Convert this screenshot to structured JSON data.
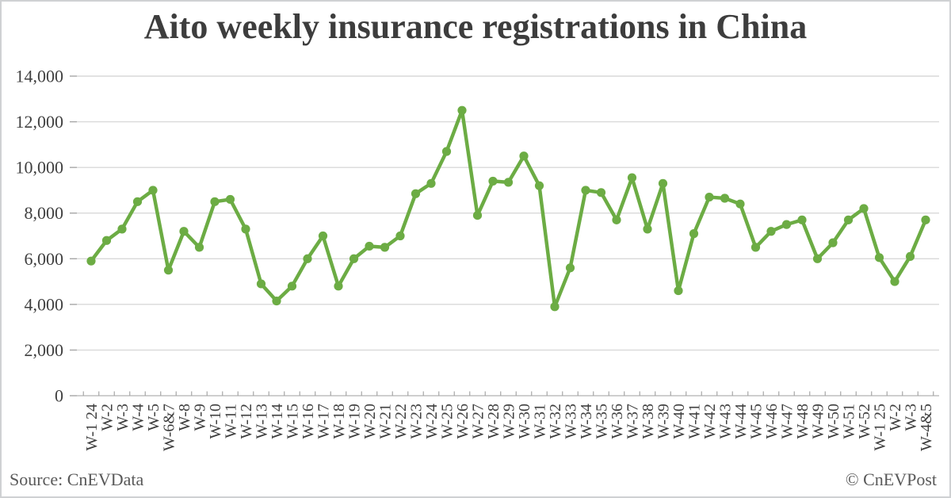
{
  "title": "Aito weekly insurance registrations in China",
  "footer": {
    "source": "Source: CnEVData",
    "copyright": "© CnEVPost"
  },
  "chart_data": {
    "type": "line",
    "title": "Aito weekly insurance registrations in China",
    "xlabel": "",
    "ylabel": "",
    "ylim": [
      0,
      14000
    ],
    "ytick_interval": 2000,
    "ytick_labels": [
      "0",
      "2,000",
      "4,000",
      "6,000",
      "8,000",
      "10,000",
      "12,000",
      "14,000"
    ],
    "grid": true,
    "legend": false,
    "categories": [
      "W-1 24",
      "W-2",
      "W-3",
      "W-4",
      "W-5",
      "W-6&7",
      "W-8",
      "W-9",
      "W-10",
      "W-11",
      "W-12",
      "W-13",
      "W-14",
      "W-15",
      "W-16",
      "W-17",
      "W-18",
      "W-19",
      "W-20",
      "W-21",
      "W-22",
      "W-23",
      "W-24",
      "W-25",
      "W-26",
      "W-27",
      "W-28",
      "W-29",
      "W-30",
      "W-31",
      "W-32",
      "W-33",
      "W-34",
      "W-35",
      "W-36",
      "W-37",
      "W-38",
      "W-39",
      "W-40",
      "W-41",
      "W-42",
      "W-43",
      "W-44",
      "W-45",
      "W-46",
      "W-47",
      "W-48",
      "W-49",
      "W-50",
      "W-51",
      "W-52",
      "W-1 25",
      "W-2",
      "W-3",
      "W-4&5"
    ],
    "values": [
      5900,
      6800,
      7300,
      8500,
      9000,
      5500,
      7200,
      6500,
      8500,
      8600,
      7300,
      4900,
      4150,
      4800,
      6000,
      7000,
      4800,
      6000,
      6550,
      6500,
      7000,
      8850,
      9300,
      10700,
      12500,
      7900,
      9400,
      9350,
      10500,
      9200,
      3900,
      5600,
      9000,
      8900,
      7700,
      9550,
      7300,
      9300,
      4600,
      7100,
      8700,
      8650,
      8400,
      6500,
      7200,
      7500,
      7700,
      6000,
      6700,
      7700,
      8200,
      6050,
      5000,
      6100,
      7700
    ],
    "style": {
      "line_color": "#6CAC44",
      "marker": "circle",
      "marker_color": "#6CAC44",
      "grid_color": "#d9d9d9",
      "axis_color": "#bfbfbf",
      "tick_color": "#a6a6a6",
      "label_color": "#3f3f3f",
      "title_color": "#3d3d3d",
      "footer_color": "#595959"
    }
  }
}
